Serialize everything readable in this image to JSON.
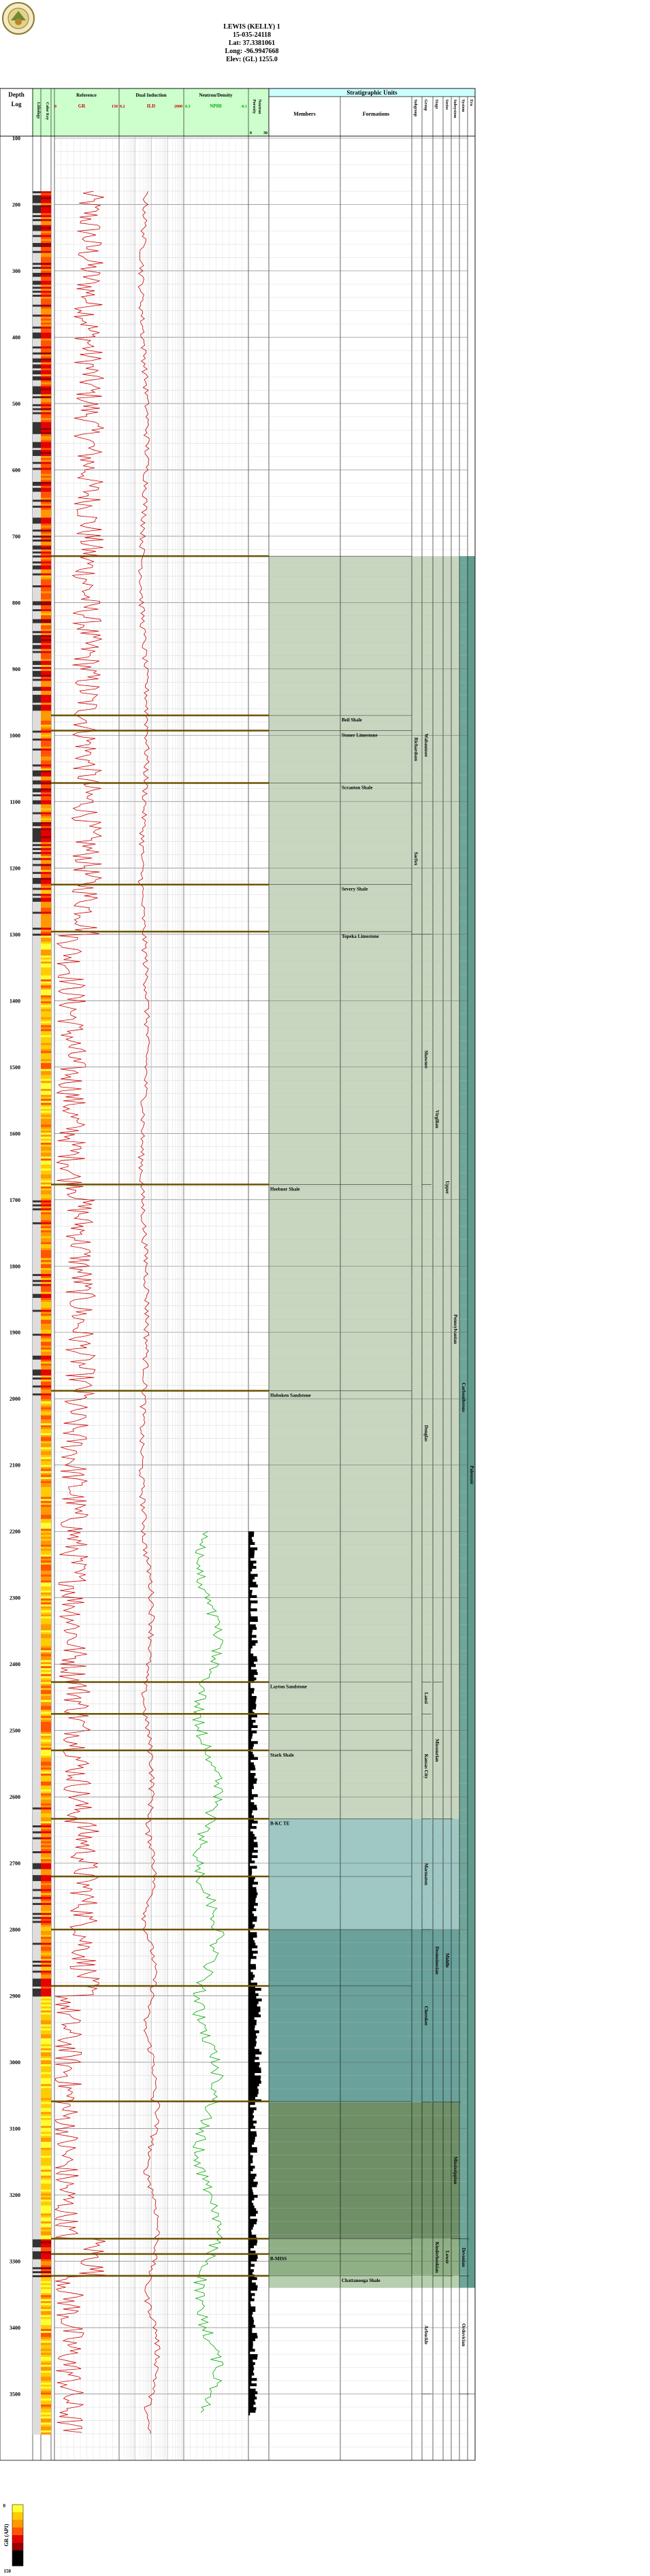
{
  "header": {
    "well_name": "LEWIS (KELLY) 1",
    "api": "15-035-24118",
    "lat": "Lat: 37.3381061",
    "long": "Long: -96.9947668",
    "elev": "Elev: (GL) 1255.0",
    "logo_text": "KANSAS GEOLOGICAL SURVEY"
  },
  "tracks": {
    "depth_title": "Depth",
    "depth_sub": "Log",
    "lithology_title": "Lithology",
    "colorkey_title": "Color Key",
    "reference_title": "Reference",
    "reference_curve": "GR",
    "reference_min": "0",
    "reference_max": "150",
    "dual_title": "Dual Induction",
    "dual_curve": "ILD",
    "dual_min": "0.2",
    "dual_max": "2000",
    "neutron_title": "Neutron/Density",
    "neutron_curve": "NPHI",
    "neutron_min": "0.3",
    "neutron_max": "-0.1",
    "porosity_title": "Porosity",
    "porosity_sub": "Neutron",
    "porosity_min": "0",
    "porosity_max": "30",
    "strat_title": "Stratigraphic Units",
    "members_title": "Members",
    "formations_title": "Formations",
    "subgroup_title": "Subgroup",
    "group_title": "Group",
    "stage_title": "Stage",
    "series_title": "Series",
    "subsystem_title": "Subsystem",
    "system_title": "System",
    "era_title": "Era",
    "legend_title": "GR (API)",
    "legend_min": "0",
    "legend_max": "150"
  },
  "depth_labels": [
    "100",
    "200",
    "300",
    "400",
    "500",
    "600",
    "700",
    "800",
    "900",
    "1000",
    "1100",
    "1200",
    "1300",
    "1400",
    "1500",
    "1600",
    "1700",
    "1800",
    "1900",
    "2000",
    "2100",
    "2200",
    "2300",
    "2400",
    "2500",
    "2600",
    "2700",
    "2800",
    "2900",
    "3000",
    "3100",
    "3200",
    "3300",
    "3400",
    "3500"
  ],
  "formations": [
    {
      "name": "Beil Shale",
      "col": "formation"
    },
    {
      "name": "Stoner Limestone",
      "col": "formation"
    },
    {
      "name": "Scranton Shale",
      "col": "formation"
    },
    {
      "name": "Severy Shale",
      "col": "formation"
    },
    {
      "name": "Topeka Limestone",
      "col": "formation"
    },
    {
      "name": "Heebner Shale",
      "col": "member"
    },
    {
      "name": "Hoboken Sandstone",
      "col": "member"
    },
    {
      "name": "Layton Sandstone",
      "col": "member"
    },
    {
      "name": "Stark Shale",
      "col": "member"
    },
    {
      "name": "B-KC TE",
      "col": "member"
    },
    {
      "name": "B-MISS",
      "col": "member"
    },
    {
      "name": "Chattanooga Shale",
      "col": "formation"
    }
  ],
  "strat_units": [
    {
      "name": "Richardson",
      "col": "subgroup"
    },
    {
      "name": "Sacfox",
      "col": "subgroup"
    },
    {
      "name": "Wabaunsee",
      "col": "group"
    },
    {
      "name": "Shawnee",
      "col": "group"
    },
    {
      "name": "Douglas",
      "col": "group"
    },
    {
      "name": "Virgilian",
      "col": "stage"
    },
    {
      "name": "Lansi",
      "col": "group"
    },
    {
      "name": "Kansas City",
      "col": "group"
    },
    {
      "name": "Missourian",
      "col": "stage"
    },
    {
      "name": "Marmaton",
      "col": "group"
    },
    {
      "name": "Cherokee",
      "col": "group"
    },
    {
      "name": "Desmoinesian",
      "col": "stage"
    },
    {
      "name": "Middle",
      "col": "series"
    },
    {
      "name": "Upper",
      "col": "series"
    },
    {
      "name": "Pennsylvanian",
      "col": "subsystem"
    },
    {
      "name": "Carboniferous",
      "col": "system"
    },
    {
      "name": "Mississippian",
      "col": "subsystem"
    },
    {
      "name": "Kinderhookian",
      "col": "stage"
    },
    {
      "name": "Lower",
      "col": "series"
    },
    {
      "name": "Arbuckle",
      "col": "group"
    },
    {
      "name": "Devonian",
      "col": "system"
    },
    {
      "name": "Ordovician",
      "col": "system"
    },
    {
      "name": "Paleozoic",
      "col": "era"
    }
  ],
  "chart_data": {
    "type": "line",
    "x_axis": "depth (ft)",
    "ylim_depth": [
      100,
      3600
    ],
    "series": [
      {
        "name": "GR",
        "range": [
          0,
          150
        ],
        "start_depth": 180,
        "end_depth": 3560
      },
      {
        "name": "ILD",
        "range": [
          0.2,
          2000
        ],
        "scale": "log",
        "start_depth": 180,
        "end_depth": 3560
      },
      {
        "name": "NPHI",
        "range": [
          0.3,
          -0.1
        ],
        "start_depth": 2200,
        "end_depth": 3530
      }
    ],
    "formation_tops": [
      {
        "name": "",
        "depth": 730
      },
      {
        "name": "Beil Shale",
        "depth": 970
      },
      {
        "name": "Stoner Limestone",
        "depth": 993
      },
      {
        "name": "Scranton Shale",
        "depth": 1072
      },
      {
        "name": "Severy Shale",
        "depth": 1225
      },
      {
        "name": "Topeka Limestone",
        "depth": 1296
      },
      {
        "name": "Heebner Shale",
        "depth": 1677
      },
      {
        "name": "Hoboken Sandstone",
        "depth": 1988
      },
      {
        "name": "Layton Sandstone",
        "depth": 2427
      },
      {
        "name": "",
        "depth": 2475
      },
      {
        "name": "Stark Shale",
        "depth": 2530
      },
      {
        "name": "B-KC TE",
        "depth": 2633
      },
      {
        "name": "",
        "depth": 2720
      },
      {
        "name": "",
        "depth": 2800
      },
      {
        "name": "",
        "depth": 2885
      },
      {
        "name": "",
        "depth": 3059
      },
      {
        "name": "",
        "depth": 3266
      },
      {
        "name": "B-MISS",
        "depth": 3289
      },
      {
        "name": "Chattanooga Shale",
        "depth": 3322
      }
    ],
    "zones": [
      {
        "from": 730,
        "to": 2633,
        "color": "#c8d6c0"
      },
      {
        "from": 2633,
        "to": 2800,
        "color": "#9fc7c3"
      },
      {
        "from": 2800,
        "to": 3060,
        "color": "#6aa19b"
      },
      {
        "from": 3060,
        "to": 3266,
        "color": "#6f8f67"
      },
      {
        "from": 3266,
        "to": 3322,
        "color": "#8fb085"
      },
      {
        "from": 3322,
        "to": 3340,
        "color": "#b6cfae"
      }
    ]
  }
}
